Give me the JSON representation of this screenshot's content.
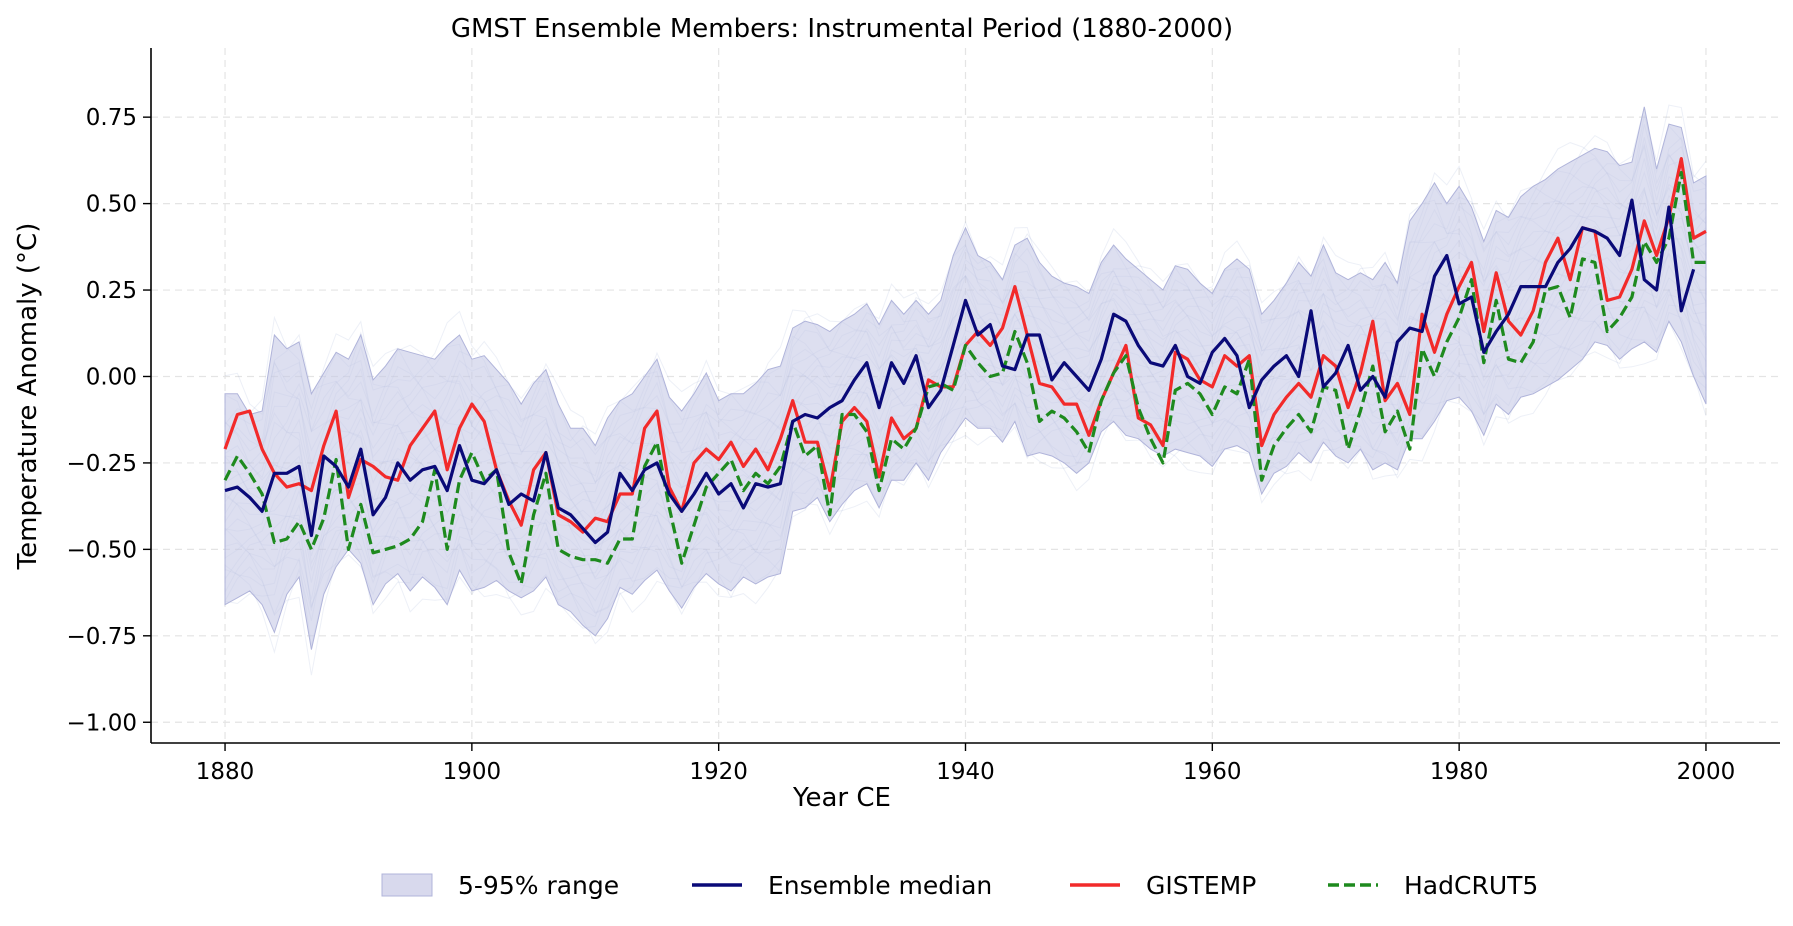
{
  "chart_data": {
    "type": "line",
    "title": "GMST Ensemble Members: Instrumental Period (1880-2000)",
    "xlabel": "Year CE",
    "ylabel": "Temperature Anomaly (°C)",
    "xlim": [
      1874,
      2006
    ],
    "ylim": [
      -1.06,
      0.95
    ],
    "x_ticks": [
      1880,
      1900,
      1920,
      1940,
      1960,
      1980,
      2000
    ],
    "x_tick_labels": [
      "1880",
      "1900",
      "1920",
      "1940",
      "1960",
      "1980",
      "2000"
    ],
    "y_ticks": [
      -1.0,
      -0.75,
      -0.5,
      -0.25,
      0.0,
      0.25,
      0.5,
      0.75
    ],
    "y_tick_labels": [
      "−1.00",
      "−0.75",
      "−0.50",
      "−0.25",
      "0.00",
      "0.25",
      "0.50",
      "0.75"
    ],
    "grid": true,
    "legend_position": "bottom-center",
    "colors": {
      "band": "#c7c9e6",
      "members": "#8fa4cf",
      "median": "#0a0a78",
      "gistemp": "#f22a2a",
      "hadcrut5": "#1e8a1e"
    },
    "x_start": 1880,
    "band": {
      "name": "5-95% range",
      "low": [
        -0.66,
        -0.64,
        -0.62,
        -0.66,
        -0.74,
        -0.63,
        -0.58,
        -0.79,
        -0.63,
        -0.55,
        -0.5,
        -0.54,
        -0.66,
        -0.6,
        -0.57,
        -0.62,
        -0.58,
        -0.61,
        -0.66,
        -0.56,
        -0.62,
        -0.61,
        -0.59,
        -0.62,
        -0.64,
        -0.62,
        -0.58,
        -0.66,
        -0.68,
        -0.72,
        -0.75,
        -0.7,
        -0.61,
        -0.63,
        -0.59,
        -0.56,
        -0.62,
        -0.67,
        -0.61,
        -0.57,
        -0.6,
        -0.62,
        -0.58,
        -0.6,
        -0.58,
        -0.57,
        -0.39,
        -0.38,
        -0.35,
        -0.42,
        -0.37,
        -0.33,
        -0.31,
        -0.38,
        -0.3,
        -0.3,
        -0.25,
        -0.3,
        -0.22,
        -0.17,
        -0.12,
        -0.15,
        -0.15,
        -0.19,
        -0.13,
        -0.23,
        -0.22,
        -0.23,
        -0.25,
        -0.28,
        -0.25,
        -0.16,
        -0.13,
        -0.17,
        -0.18,
        -0.21,
        -0.23,
        -0.21,
        -0.22,
        -0.23,
        -0.26,
        -0.21,
        -0.2,
        -0.22,
        -0.34,
        -0.28,
        -0.26,
        -0.22,
        -0.25,
        -0.19,
        -0.23,
        -0.25,
        -0.21,
        -0.27,
        -0.25,
        -0.27,
        -0.18,
        -0.18,
        -0.13,
        -0.07,
        -0.06,
        -0.1,
        -0.17,
        -0.08,
        -0.11,
        -0.06,
        -0.05,
        -0.03,
        -0.01,
        0.02,
        0.05,
        0.1,
        0.09,
        0.05,
        0.08,
        0.1,
        0.07,
        0.16,
        0.1,
        0.0,
        -0.08
      ],
      "high": [
        -0.05,
        -0.05,
        -0.11,
        -0.1,
        0.12,
        0.08,
        0.1,
        -0.05,
        0.01,
        0.07,
        0.05,
        0.12,
        -0.01,
        0.03,
        0.08,
        0.07,
        0.06,
        0.05,
        0.09,
        0.12,
        0.05,
        0.06,
        0.02,
        -0.02,
        -0.08,
        -0.02,
        0.02,
        -0.08,
        -0.15,
        -0.15,
        -0.2,
        -0.12,
        -0.07,
        -0.05,
        0.0,
        0.05,
        -0.06,
        -0.1,
        -0.05,
        0.01,
        -0.07,
        -0.05,
        -0.05,
        -0.02,
        0.02,
        0.03,
        0.14,
        0.16,
        0.15,
        0.13,
        0.16,
        0.18,
        0.21,
        0.15,
        0.22,
        0.18,
        0.22,
        0.18,
        0.22,
        0.35,
        0.43,
        0.35,
        0.33,
        0.28,
        0.38,
        0.4,
        0.33,
        0.29,
        0.27,
        0.26,
        0.24,
        0.33,
        0.38,
        0.34,
        0.31,
        0.28,
        0.25,
        0.32,
        0.31,
        0.27,
        0.24,
        0.31,
        0.34,
        0.31,
        0.18,
        0.22,
        0.27,
        0.33,
        0.29,
        0.38,
        0.3,
        0.28,
        0.3,
        0.28,
        0.33,
        0.27,
        0.45,
        0.5,
        0.56,
        0.5,
        0.55,
        0.49,
        0.39,
        0.48,
        0.46,
        0.52,
        0.55,
        0.57,
        0.6,
        0.62,
        0.64,
        0.66,
        0.65,
        0.61,
        0.62,
        0.78,
        0.6,
        0.73,
        0.72,
        0.56,
        0.58
      ]
    },
    "series": [
      {
        "name": "Ensemble median",
        "values": [
          -0.33,
          -0.32,
          -0.35,
          -0.39,
          -0.28,
          -0.28,
          -0.26,
          -0.46,
          -0.23,
          -0.26,
          -0.32,
          -0.21,
          -0.4,
          -0.35,
          -0.25,
          -0.3,
          -0.27,
          -0.26,
          -0.33,
          -0.2,
          -0.3,
          -0.31,
          -0.27,
          -0.37,
          -0.34,
          -0.36,
          -0.22,
          -0.38,
          -0.4,
          -0.44,
          -0.48,
          -0.45,
          -0.28,
          -0.33,
          -0.27,
          -0.25,
          -0.34,
          -0.39,
          -0.34,
          -0.28,
          -0.34,
          -0.31,
          -0.38,
          -0.31,
          -0.32,
          -0.31,
          -0.13,
          -0.11,
          -0.12,
          -0.09,
          -0.07,
          -0.01,
          0.04,
          -0.09,
          0.04,
          -0.02,
          0.06,
          -0.09,
          -0.04,
          0.09,
          0.22,
          0.12,
          0.15,
          0.03,
          0.02,
          0.12,
          0.12,
          -0.01,
          0.04,
          0.0,
          -0.04,
          0.05,
          0.18,
          0.16,
          0.09,
          0.04,
          0.03,
          0.09,
          0.0,
          -0.02,
          0.07,
          0.11,
          0.06,
          -0.09,
          -0.01,
          0.03,
          0.06,
          0.0,
          0.19,
          -0.03,
          0.01,
          0.09,
          -0.04,
          0.0,
          -0.06,
          0.1,
          0.14,
          0.13,
          0.29,
          0.35,
          0.21,
          0.23,
          0.07,
          0.13,
          0.18,
          0.26,
          0.26,
          0.26,
          0.33,
          0.37,
          0.43,
          0.42,
          0.4,
          0.35,
          0.51,
          0.28,
          0.25,
          0.49,
          0.19,
          0.31
        ],
        "color": "#0a0a78",
        "style": "solid"
      },
      {
        "name": "GISTEMP",
        "values": [
          -0.21,
          -0.11,
          -0.1,
          -0.21,
          -0.28,
          -0.32,
          -0.31,
          -0.33,
          -0.2,
          -0.1,
          -0.35,
          -0.24,
          -0.26,
          -0.29,
          -0.3,
          -0.2,
          -0.15,
          -0.1,
          -0.27,
          -0.15,
          -0.08,
          -0.13,
          -0.27,
          -0.36,
          -0.43,
          -0.27,
          -0.22,
          -0.4,
          -0.42,
          -0.45,
          -0.41,
          -0.42,
          -0.34,
          -0.34,
          -0.15,
          -0.1,
          -0.32,
          -0.39,
          -0.25,
          -0.21,
          -0.24,
          -0.19,
          -0.26,
          -0.21,
          -0.27,
          -0.18,
          -0.07,
          -0.19,
          -0.19,
          -0.33,
          -0.13,
          -0.09,
          -0.13,
          -0.29,
          -0.12,
          -0.18,
          -0.15,
          -0.01,
          -0.03,
          -0.03,
          0.09,
          0.13,
          0.09,
          0.14,
          0.26,
          0.12,
          -0.02,
          -0.03,
          -0.08,
          -0.08,
          -0.17,
          -0.07,
          0.01,
          0.09,
          -0.12,
          -0.14,
          -0.2,
          0.07,
          0.05,
          -0.01,
          -0.03,
          0.06,
          0.03,
          0.06,
          -0.2,
          -0.11,
          -0.06,
          -0.02,
          -0.06,
          0.06,
          0.03,
          -0.09,
          0.01,
          0.16,
          -0.07,
          -0.02,
          -0.11,
          0.18,
          0.07,
          0.18,
          0.26,
          0.33,
          0.13,
          0.3,
          0.16,
          0.12,
          0.19,
          0.33,
          0.4,
          0.28,
          0.43,
          0.42,
          0.22,
          0.23,
          0.31,
          0.45,
          0.35,
          0.46,
          0.63,
          0.4,
          0.42
        ],
        "color": "#f22a2a",
        "style": "solid"
      },
      {
        "name": "HadCRUT5",
        "values": [
          -0.3,
          -0.23,
          -0.28,
          -0.34,
          -0.48,
          -0.47,
          -0.42,
          -0.5,
          -0.41,
          -0.24,
          -0.5,
          -0.37,
          -0.51,
          -0.5,
          -0.49,
          -0.47,
          -0.42,
          -0.27,
          -0.5,
          -0.3,
          -0.22,
          -0.3,
          -0.27,
          -0.51,
          -0.6,
          -0.4,
          -0.28,
          -0.5,
          -0.52,
          -0.53,
          -0.53,
          -0.54,
          -0.47,
          -0.47,
          -0.26,
          -0.19,
          -0.38,
          -0.54,
          -0.43,
          -0.32,
          -0.28,
          -0.24,
          -0.33,
          -0.28,
          -0.31,
          -0.26,
          -0.13,
          -0.23,
          -0.2,
          -0.4,
          -0.11,
          -0.11,
          -0.16,
          -0.33,
          -0.18,
          -0.21,
          -0.15,
          -0.03,
          -0.02,
          -0.04,
          0.09,
          0.04,
          0.0,
          0.01,
          0.13,
          0.04,
          -0.13,
          -0.1,
          -0.12,
          -0.16,
          -0.22,
          -0.07,
          0.01,
          0.06,
          -0.09,
          -0.18,
          -0.25,
          -0.04,
          -0.02,
          -0.05,
          -0.11,
          -0.03,
          -0.05,
          0.05,
          -0.3,
          -0.2,
          -0.15,
          -0.11,
          -0.16,
          -0.03,
          -0.04,
          -0.21,
          -0.1,
          0.03,
          -0.16,
          -0.1,
          -0.21,
          0.08,
          0.0,
          0.1,
          0.17,
          0.28,
          0.04,
          0.22,
          0.05,
          0.04,
          0.1,
          0.25,
          0.26,
          0.17,
          0.34,
          0.33,
          0.13,
          0.17,
          0.23,
          0.39,
          0.33,
          0.4,
          0.59,
          0.33,
          0.33
        ],
        "color": "#1e8a1e",
        "style": "dashed"
      }
    ],
    "legend": [
      {
        "label": "5-95% range",
        "kind": "patch"
      },
      {
        "label": "Ensemble median",
        "kind": "line"
      },
      {
        "label": "GISTEMP",
        "kind": "line"
      },
      {
        "label": "HadCRUT5",
        "kind": "dashed"
      }
    ]
  }
}
